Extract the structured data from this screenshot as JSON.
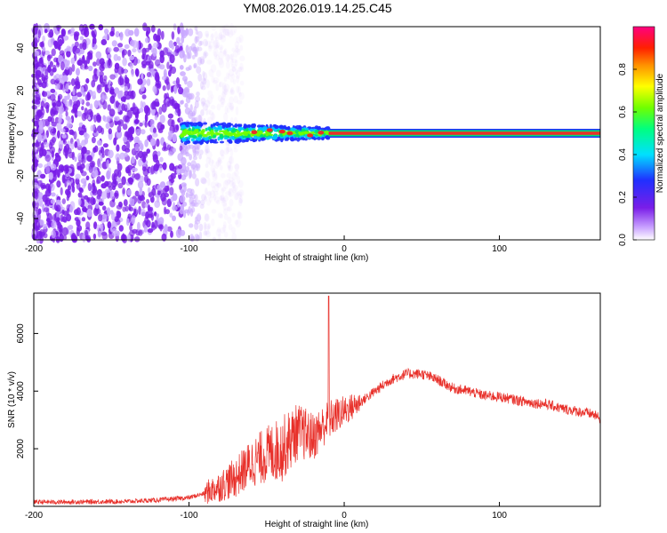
{
  "title": "YM08.2026.019.14.25.C45",
  "chart_data": [
    {
      "type": "heatmap",
      "xlabel": "Height of straight line (km)",
      "ylabel": "Frequency (Hz)",
      "xlim": [
        -200,
        165
      ],
      "ylim": [
        -50,
        50
      ],
      "xticks": [
        "-200",
        "-100",
        "0",
        "100"
      ],
      "yticks": [
        "-40",
        "-20",
        "0",
        "20",
        "40"
      ],
      "colorbar": {
        "label": "Normalized spectral amplitude",
        "range": [
          0,
          1
        ],
        "ticks": [
          "0.0",
          "0.2",
          "0.4",
          "0.6",
          "0.8"
        ]
      },
      "noise_region_x": [
        -200,
        -80
      ],
      "signal_line_frequency": 0,
      "signal_peaks": [
        {
          "x": -58,
          "y": 0.5
        },
        {
          "x": -48,
          "y": 1.5
        },
        {
          "x": -40,
          "y": 0.8
        },
        {
          "x": -35,
          "y": 0.0
        },
        {
          "x": -22,
          "y": -1.0
        },
        {
          "x": -15,
          "y": 0.3
        }
      ]
    },
    {
      "type": "line",
      "xlabel": "Height of straight line (km)",
      "ylabel": "SNR (10 * v/v)",
      "xlim": [
        -200,
        165
      ],
      "ylim": [
        0,
        7400
      ],
      "xticks": [
        "-200",
        "-100",
        "0",
        "100"
      ],
      "yticks": [
        "2000",
        "4000",
        "6000"
      ],
      "series": [
        {
          "color": "#e8302a",
          "x": [
            -200,
            -180,
            -160,
            -140,
            -120,
            -100,
            -90,
            -80,
            -70,
            -60,
            -50,
            -40,
            -30,
            -20,
            -10,
            0,
            10,
            20,
            30,
            40,
            50,
            60,
            70,
            80,
            90,
            100,
            110,
            120,
            130,
            140,
            150,
            160,
            165
          ],
          "y": [
            150,
            150,
            160,
            170,
            220,
            300,
            450,
            700,
            1000,
            1500,
            1800,
            2000,
            2600,
            2400,
            3000,
            3300,
            3600,
            4000,
            4400,
            4600,
            4600,
            4400,
            4100,
            4000,
            3850,
            3800,
            3700,
            3600,
            3550,
            3400,
            3300,
            3200,
            3050
          ],
          "spike": {
            "x": -10,
            "y": 7300
          }
        }
      ]
    }
  ],
  "colors": {
    "noise": "#7a1ee8",
    "signal_line": "#e8302a",
    "axis": "#000000"
  }
}
